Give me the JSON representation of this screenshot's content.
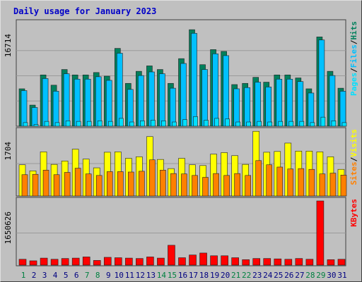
{
  "title": "Daily usage for January 2023",
  "colors": {
    "background": "#c0c0c0",
    "panel": "#c0c0c0",
    "title": "#0000c8",
    "weekday": "#000080",
    "weekend": "#008040",
    "hits": "#00805c",
    "files": "#00c0ff",
    "pages": "#00e0ff",
    "visits": "#ffff00",
    "sites": "#ff8000",
    "kbytes": "#ff0000",
    "gridline": "#9a9a9a"
  },
  "chart_data": [
    {
      "type": "bar",
      "panel": "hits-files-pages",
      "max_label": "16714",
      "ylim": [
        0,
        16714
      ],
      "legend": [
        "Pages",
        "Files",
        "Hits"
      ],
      "categories": [
        "1",
        "2",
        "3",
        "4",
        "5",
        "6",
        "7",
        "8",
        "9",
        "10",
        "11",
        "12",
        "13",
        "14",
        "15",
        "16",
        "17",
        "18",
        "19",
        "20",
        "21",
        "22",
        "23",
        "24",
        "25",
        "26",
        "27",
        "28",
        "29",
        "30",
        "31"
      ],
      "weekend_days": [
        1,
        7,
        8,
        14,
        15,
        21,
        22,
        28,
        29
      ],
      "series": [
        {
          "name": "Hits",
          "values": [
            6200,
            3500,
            8500,
            6800,
            9400,
            8500,
            8500,
            8900,
            8300,
            12900,
            7100,
            9100,
            10000,
            9400,
            7100,
            11200,
            16000,
            10200,
            12700,
            12400,
            6900,
            7100,
            8100,
            7300,
            8500,
            8500,
            8000,
            6200,
            14800,
            9100,
            6300
          ]
        },
        {
          "name": "Files",
          "values": [
            5900,
            3100,
            7900,
            5800,
            8700,
            7800,
            7800,
            8200,
            7600,
            12100,
            6100,
            8400,
            9000,
            8700,
            6300,
            10400,
            15400,
            9400,
            12000,
            11700,
            6200,
            6400,
            7300,
            6500,
            7800,
            7800,
            7400,
            5500,
            14300,
            8400,
            5800
          ]
        },
        {
          "name": "Pages",
          "values": [
            600,
            300,
            800,
            600,
            900,
            800,
            800,
            900,
            800,
            1300,
            700,
            900,
            1000,
            900,
            700,
            1100,
            1600,
            1000,
            1300,
            1200,
            700,
            700,
            800,
            700,
            800,
            800,
            800,
            600,
            1500,
            900,
            600
          ]
        }
      ]
    },
    {
      "type": "bar",
      "panel": "visits-sites",
      "max_label": "1704",
      "ylim": [
        0,
        1704
      ],
      "legend": [
        "Sites",
        "Visits"
      ],
      "categories": [
        "1",
        "2",
        "3",
        "4",
        "5",
        "6",
        "7",
        "8",
        "9",
        "10",
        "11",
        "12",
        "13",
        "14",
        "15",
        "16",
        "17",
        "18",
        "19",
        "20",
        "21",
        "22",
        "23",
        "24",
        "25",
        "26",
        "27",
        "28",
        "29",
        "30",
        "31"
      ],
      "series": [
        {
          "name": "Visits",
          "values": [
            820,
            660,
            1160,
            830,
            920,
            1230,
            970,
            740,
            1150,
            1160,
            990,
            1030,
            1560,
            960,
            720,
            990,
            820,
            800,
            1100,
            1140,
            1060,
            830,
            1700,
            1150,
            1170,
            1390,
            1180,
            1180,
            1160,
            1030,
            700
          ]
        },
        {
          "name": "Sites",
          "values": [
            560,
            570,
            680,
            560,
            620,
            730,
            580,
            540,
            640,
            640,
            630,
            650,
            950,
            680,
            590,
            580,
            540,
            490,
            590,
            540,
            590,
            540,
            930,
            820,
            760,
            710,
            720,
            700,
            580,
            600,
            550
          ]
        }
      ]
    },
    {
      "type": "bar",
      "panel": "kbytes",
      "max_label": "1650626",
      "ylim": [
        0,
        1650626
      ],
      "legend": [
        "KBytes"
      ],
      "categories": [
        "1",
        "2",
        "3",
        "4",
        "5",
        "6",
        "7",
        "8",
        "9",
        "10",
        "11",
        "12",
        "13",
        "14",
        "15",
        "16",
        "17",
        "18",
        "19",
        "20",
        "21",
        "22",
        "23",
        "24",
        "25",
        "26",
        "27",
        "28",
        "29",
        "30",
        "31"
      ],
      "series": [
        {
          "name": "KBytes",
          "values": [
            150000,
            110000,
            180000,
            150000,
            170000,
            180000,
            210000,
            120000,
            200000,
            190000,
            180000,
            170000,
            210000,
            180000,
            510000,
            190000,
            260000,
            310000,
            240000,
            240000,
            190000,
            140000,
            170000,
            170000,
            160000,
            150000,
            170000,
            150000,
            1650626,
            140000,
            150000
          ]
        }
      ]
    }
  ]
}
